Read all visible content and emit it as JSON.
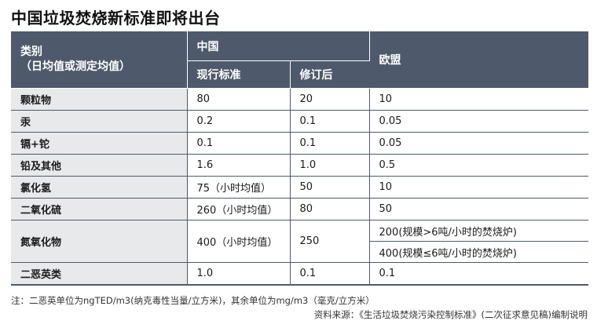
{
  "title": "中国垃圾焚烧新标准即将出台",
  "headers": {
    "category_line1": "类别",
    "category_line2": "（日均值或测定均值）",
    "china": "中国",
    "current": "现行标准",
    "revised": "修订后",
    "eu": "欧盟"
  },
  "rows": [
    {
      "category": "颗粒物",
      "current": "80",
      "revised": "20",
      "eu": "10"
    },
    {
      "category": "汞",
      "current": "0.2",
      "revised": "0.1",
      "eu": "0.05"
    },
    {
      "category": "镉+铊",
      "current": "0.1",
      "revised": "0.1",
      "eu": "0.05"
    },
    {
      "category": "铅及其他",
      "current": "1.6",
      "revised": "1.0",
      "eu": "0.5"
    },
    {
      "category": "氯化氢",
      "current": "75（小时均值）",
      "revised": "50",
      "eu": "10"
    },
    {
      "category": "二氧化硫",
      "current": "260（小时均值）",
      "revised": "80",
      "eu": "50"
    },
    {
      "category": "氮氧化物",
      "current": "400（小时均值）",
      "revised": "250",
      "eu_a": "200(规模>6吨/小时的焚烧炉)",
      "eu_b": "400(规模≤6吨/小时的焚烧炉)"
    },
    {
      "category": "二恶英类",
      "current": "1.0",
      "revised": "0.1",
      "eu": "0.1"
    }
  ],
  "note": "注：二恶英单位为ngTED/m3(纳克毒性当量/立方米)，其余单位为mg/m3（毫克/立方米）",
  "source": "资料来源：《生活垃圾焚烧污染控制标准》(二次征求意见稿)编制说明"
}
